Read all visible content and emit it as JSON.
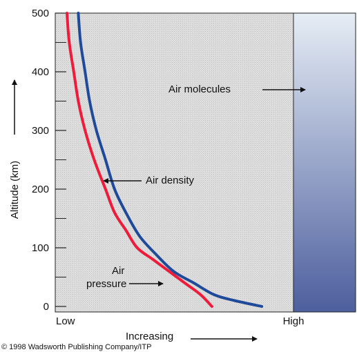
{
  "chart_data": {
    "type": "line",
    "title": "",
    "ylabel": "Altitude (km)",
    "xlabel": "Increasing",
    "ylim": [
      0,
      500
    ],
    "yticks": [
      0,
      100,
      200,
      300,
      400,
      500
    ],
    "yticks_labels": [
      "0",
      "100",
      "200",
      "300",
      "400",
      "500"
    ],
    "xticks_labels": [
      "Low",
      "High"
    ],
    "series": [
      {
        "name": "Air pressure",
        "color": "#ee1c3a",
        "points": [
          [
            0.64,
            0
          ],
          [
            0.59,
            20
          ],
          [
            0.52,
            40
          ],
          [
            0.45,
            60
          ],
          [
            0.38,
            80
          ],
          [
            0.31,
            100
          ],
          [
            0.26,
            130
          ],
          [
            0.21,
            160
          ],
          [
            0.17,
            200
          ],
          [
            0.12,
            250
          ],
          [
            0.08,
            300
          ],
          [
            0.05,
            350
          ],
          [
            0.03,
            400
          ],
          [
            0.01,
            450
          ],
          [
            0.0,
            500
          ]
        ]
      },
      {
        "name": "Air density",
        "color": "#1f4a9a",
        "points": [
          [
            0.86,
            0
          ],
          [
            0.74,
            10
          ],
          [
            0.65,
            20
          ],
          [
            0.56,
            40
          ],
          [
            0.47,
            60
          ],
          [
            0.39,
            90
          ],
          [
            0.32,
            120
          ],
          [
            0.26,
            160
          ],
          [
            0.21,
            200
          ],
          [
            0.17,
            250
          ],
          [
            0.13,
            300
          ],
          [
            0.1,
            350
          ],
          [
            0.08,
            400
          ],
          [
            0.06,
            450
          ],
          [
            0.05,
            500
          ]
        ]
      }
    ],
    "annotations": {
      "air_density": "Air density",
      "air_pressure_line1": "Air",
      "air_pressure_line2": "pressure",
      "air_molecules": "Air molecules"
    },
    "colors": {
      "plot_background": "#d9d9d9",
      "molecules_top": "#e6edf5",
      "molecules_bottom": "#4d5f9e"
    }
  },
  "credit": "© 1998 Wadsworth Publishing Company/ITP"
}
